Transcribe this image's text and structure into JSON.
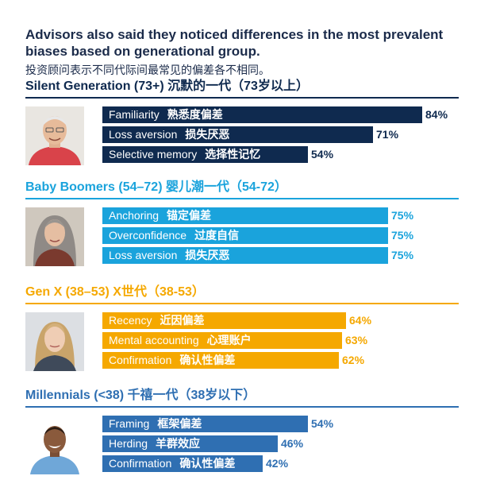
{
  "heading": "Advisors also said they noticed differences in the most prevalent biases based on generational group.",
  "subheading": "投资顾问表示不同代际间最常见的偏差各不相同。",
  "colors": {
    "silent": "#0f2a4f",
    "boomers": "#1aa3dc",
    "genx": "#f5a800",
    "millennials": "#2f6fb2",
    "navy_text": "#1b2b4a"
  },
  "chart_data": {
    "type": "bar",
    "orientation": "horizontal",
    "title": "Advisors also said they noticed differences in the most prevalent biases based on generational group.",
    "xlim": [
      0,
      100
    ],
    "groups": [
      {
        "key": "silent",
        "label": "Silent Generation (73+) 沉默的一代（73岁以上）",
        "color": "#0f2a4f",
        "photo_icon": "older-man-photo",
        "bars": [
          {
            "label": "Familiarity",
            "label_zh": "熟悉度偏差",
            "value": 84,
            "display": "84%"
          },
          {
            "label": "Loss aversion",
            "label_zh": "损失厌恶",
            "value": 71,
            "display": "71%"
          },
          {
            "label": "Selective memory",
            "label_zh": "选择性记忆",
            "value": 54,
            "display": "54%"
          }
        ]
      },
      {
        "key": "boomers",
        "label": "Baby Boomers (54–72) 婴儿潮一代（54-72）",
        "color": "#1aa3dc",
        "photo_icon": "gray-haired-woman-photo",
        "bars": [
          {
            "label": "Anchoring",
            "label_zh": "锚定偏差",
            "value": 75,
            "display": "75%"
          },
          {
            "label": "Overconfidence",
            "label_zh": "过度自信",
            "value": 75,
            "display": "75%"
          },
          {
            "label": "Loss aversion",
            "label_zh": "损失厌恶",
            "value": 75,
            "display": "75%"
          }
        ]
      },
      {
        "key": "genx",
        "label": "Gen X (38–53) X世代（38-53）",
        "color": "#f5a800",
        "photo_icon": "blonde-woman-photo",
        "bars": [
          {
            "label": "Recency",
            "label_zh": "近因偏差",
            "value": 64,
            "display": "64%"
          },
          {
            "label": "Mental accounting",
            "label_zh": "心理账户",
            "value": 63,
            "display": "63%"
          },
          {
            "label": "Confirmation",
            "label_zh": "确认性偏差",
            "value": 62,
            "display": "62%"
          }
        ]
      },
      {
        "key": "millennials",
        "label": "Millennials (<38) 千禧一代（38岁以下）",
        "color": "#2f6fb2",
        "photo_icon": "young-man-photo",
        "bars": [
          {
            "label": "Framing",
            "label_zh": "框架偏差",
            "value": 54,
            "display": "54%"
          },
          {
            "label": "Herding",
            "label_zh": "羊群效应",
            "value": 46,
            "display": "46%"
          },
          {
            "label": "Confirmation",
            "label_zh": "确认性偏差",
            "value": 42,
            "display": "42%"
          }
        ]
      }
    ]
  }
}
